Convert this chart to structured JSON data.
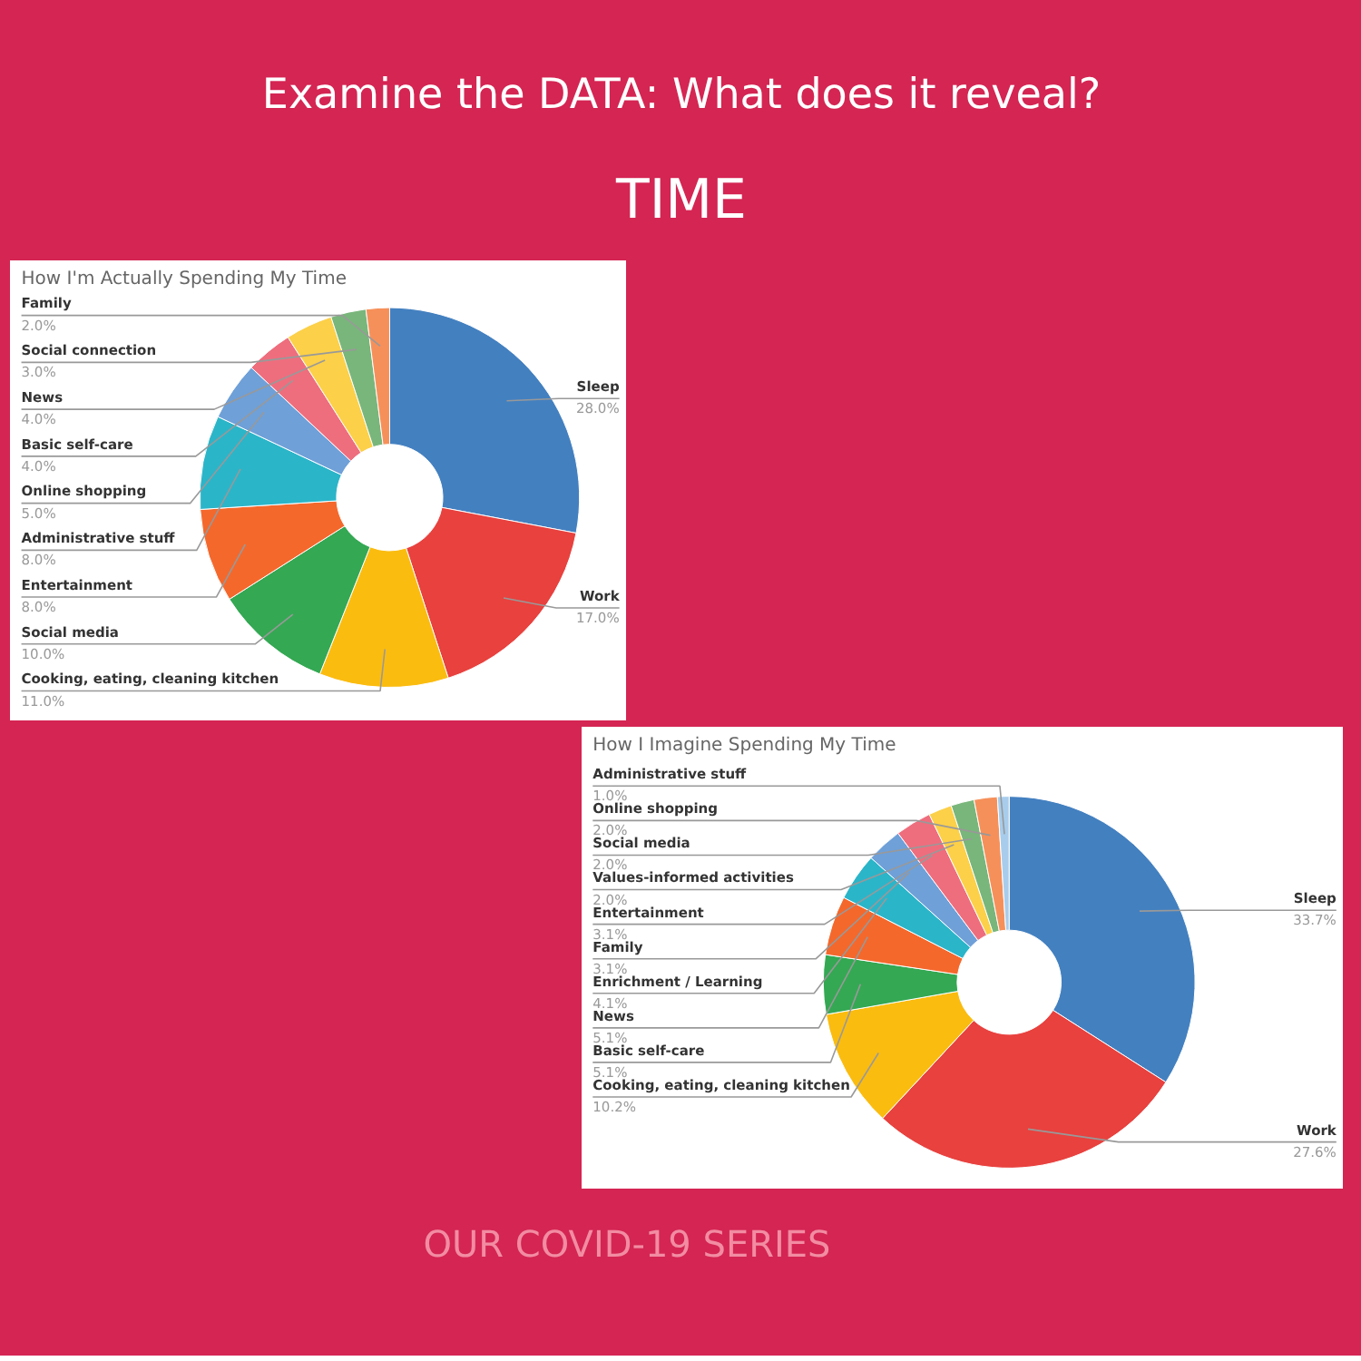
{
  "chart_data": [
    {
      "type": "other",
      "title": "Examine the DATA: What does it reveal?",
      "subtitle": "TIME",
      "annotations": [
        "OUR COVID-19 SERIES"
      ]
    },
    {
      "type": "donut",
      "title": "How I'm Actually Spending My Time",
      "categories": [
        "Sleep",
        "Work",
        "Cooking, eating, cleaning kitchen",
        "Social media",
        "Entertainment",
        "Administrative stuff",
        "Online shopping",
        "Basic self-care",
        "News",
        "Social connection",
        "Family"
      ],
      "values": [
        28.0,
        17.0,
        11.0,
        10.0,
        8.0,
        8.0,
        5.0,
        4.0,
        4.0,
        3.0,
        2.0
      ],
      "value_labels": [
        "28.0%",
        "17.0%",
        "11.0%",
        "10.0%",
        "8.0%",
        "8.0%",
        "5.0%",
        "4.0%",
        "4.0%",
        "3.0%",
        "2.0%"
      ],
      "colors": [
        "#4380c0",
        "#e8413e",
        "#fbbc10",
        "#34a853",
        "#f4682c",
        "#2bb5c9",
        "#6fa0d8",
        "#ee6e7e",
        "#fcd048",
        "#79b67b",
        "#f6905a"
      ]
    },
    {
      "type": "donut",
      "title": "How I Imagine Spending My Time",
      "categories": [
        "Sleep",
        "Work",
        "Cooking, eating, cleaning kitchen",
        "Basic self-care",
        "News",
        "Enrichment / Learning",
        "Family",
        "Entertainment",
        "Values-informed activities",
        "Social media",
        "Online shopping",
        "Administrative stuff"
      ],
      "values": [
        33.7,
        27.6,
        10.2,
        5.1,
        5.1,
        4.1,
        3.1,
        3.1,
        2.0,
        2.0,
        2.0,
        1.0
      ],
      "value_labels": [
        "33.7%",
        "27.6%",
        "10.2%",
        "5.1%",
        "5.1%",
        "4.1%",
        "3.1%",
        "3.1%",
        "2.0%",
        "2.0%",
        "2.0%",
        "1.0%"
      ],
      "colors": [
        "#4380c0",
        "#e8413e",
        "#fbbc10",
        "#34a853",
        "#f4682c",
        "#2bb5c9",
        "#6fa0d8",
        "#ee6e7e",
        "#fcd048",
        "#79b67b",
        "#f6905a",
        "#a8cdec"
      ]
    }
  ]
}
